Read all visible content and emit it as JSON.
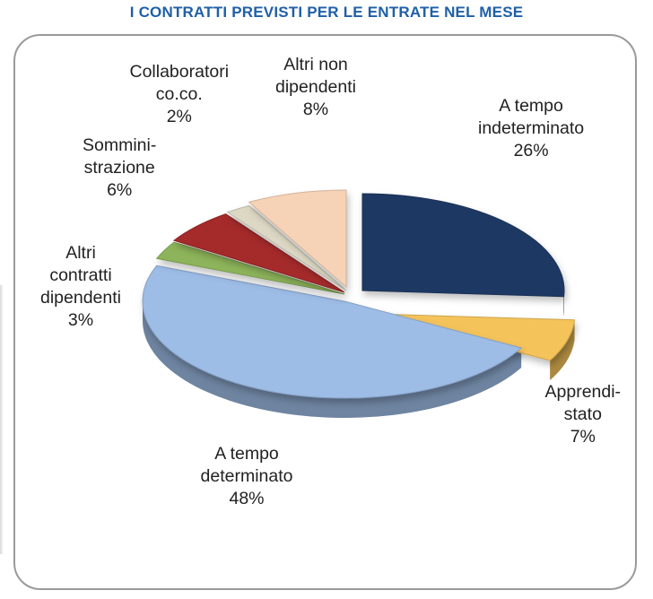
{
  "title": "I CONTRATTI PREVISTI PER LE ENTRATE NEL MESE",
  "chart_data": {
    "type": "pie",
    "title": "I CONTRATTI PREVISTI PER LE ENTRATE NEL MESE",
    "slices": [
      {
        "lines": [
          "A tempo",
          "indeterminato"
        ],
        "pct_label": "26%",
        "value": 26,
        "color": "#1f3864"
      },
      {
        "lines": [
          "Apprendi-",
          "stato"
        ],
        "pct_label": "7%",
        "value": 7,
        "color": "#f4c35a"
      },
      {
        "lines": [
          "A tempo",
          "determinato"
        ],
        "pct_label": "48%",
        "value": 48,
        "color": "#9dbce6"
      },
      {
        "lines": [
          "Altri",
          "contratti",
          "dipendenti"
        ],
        "pct_label": "3%",
        "value": 3,
        "color": "#8db45a"
      },
      {
        "lines": [
          "Sommini-",
          "strazione"
        ],
        "pct_label": "6%",
        "value": 6,
        "color": "#a52a2a"
      },
      {
        "lines": [
          "Collaboratori",
          "co.co."
        ],
        "pct_label": "2%",
        "value": 2,
        "color": "#ddd8c4"
      },
      {
        "lines": [
          "Altri non",
          "dipendenti"
        ],
        "pct_label": "8%",
        "value": 8,
        "color": "#f6d2b6"
      }
    ]
  }
}
